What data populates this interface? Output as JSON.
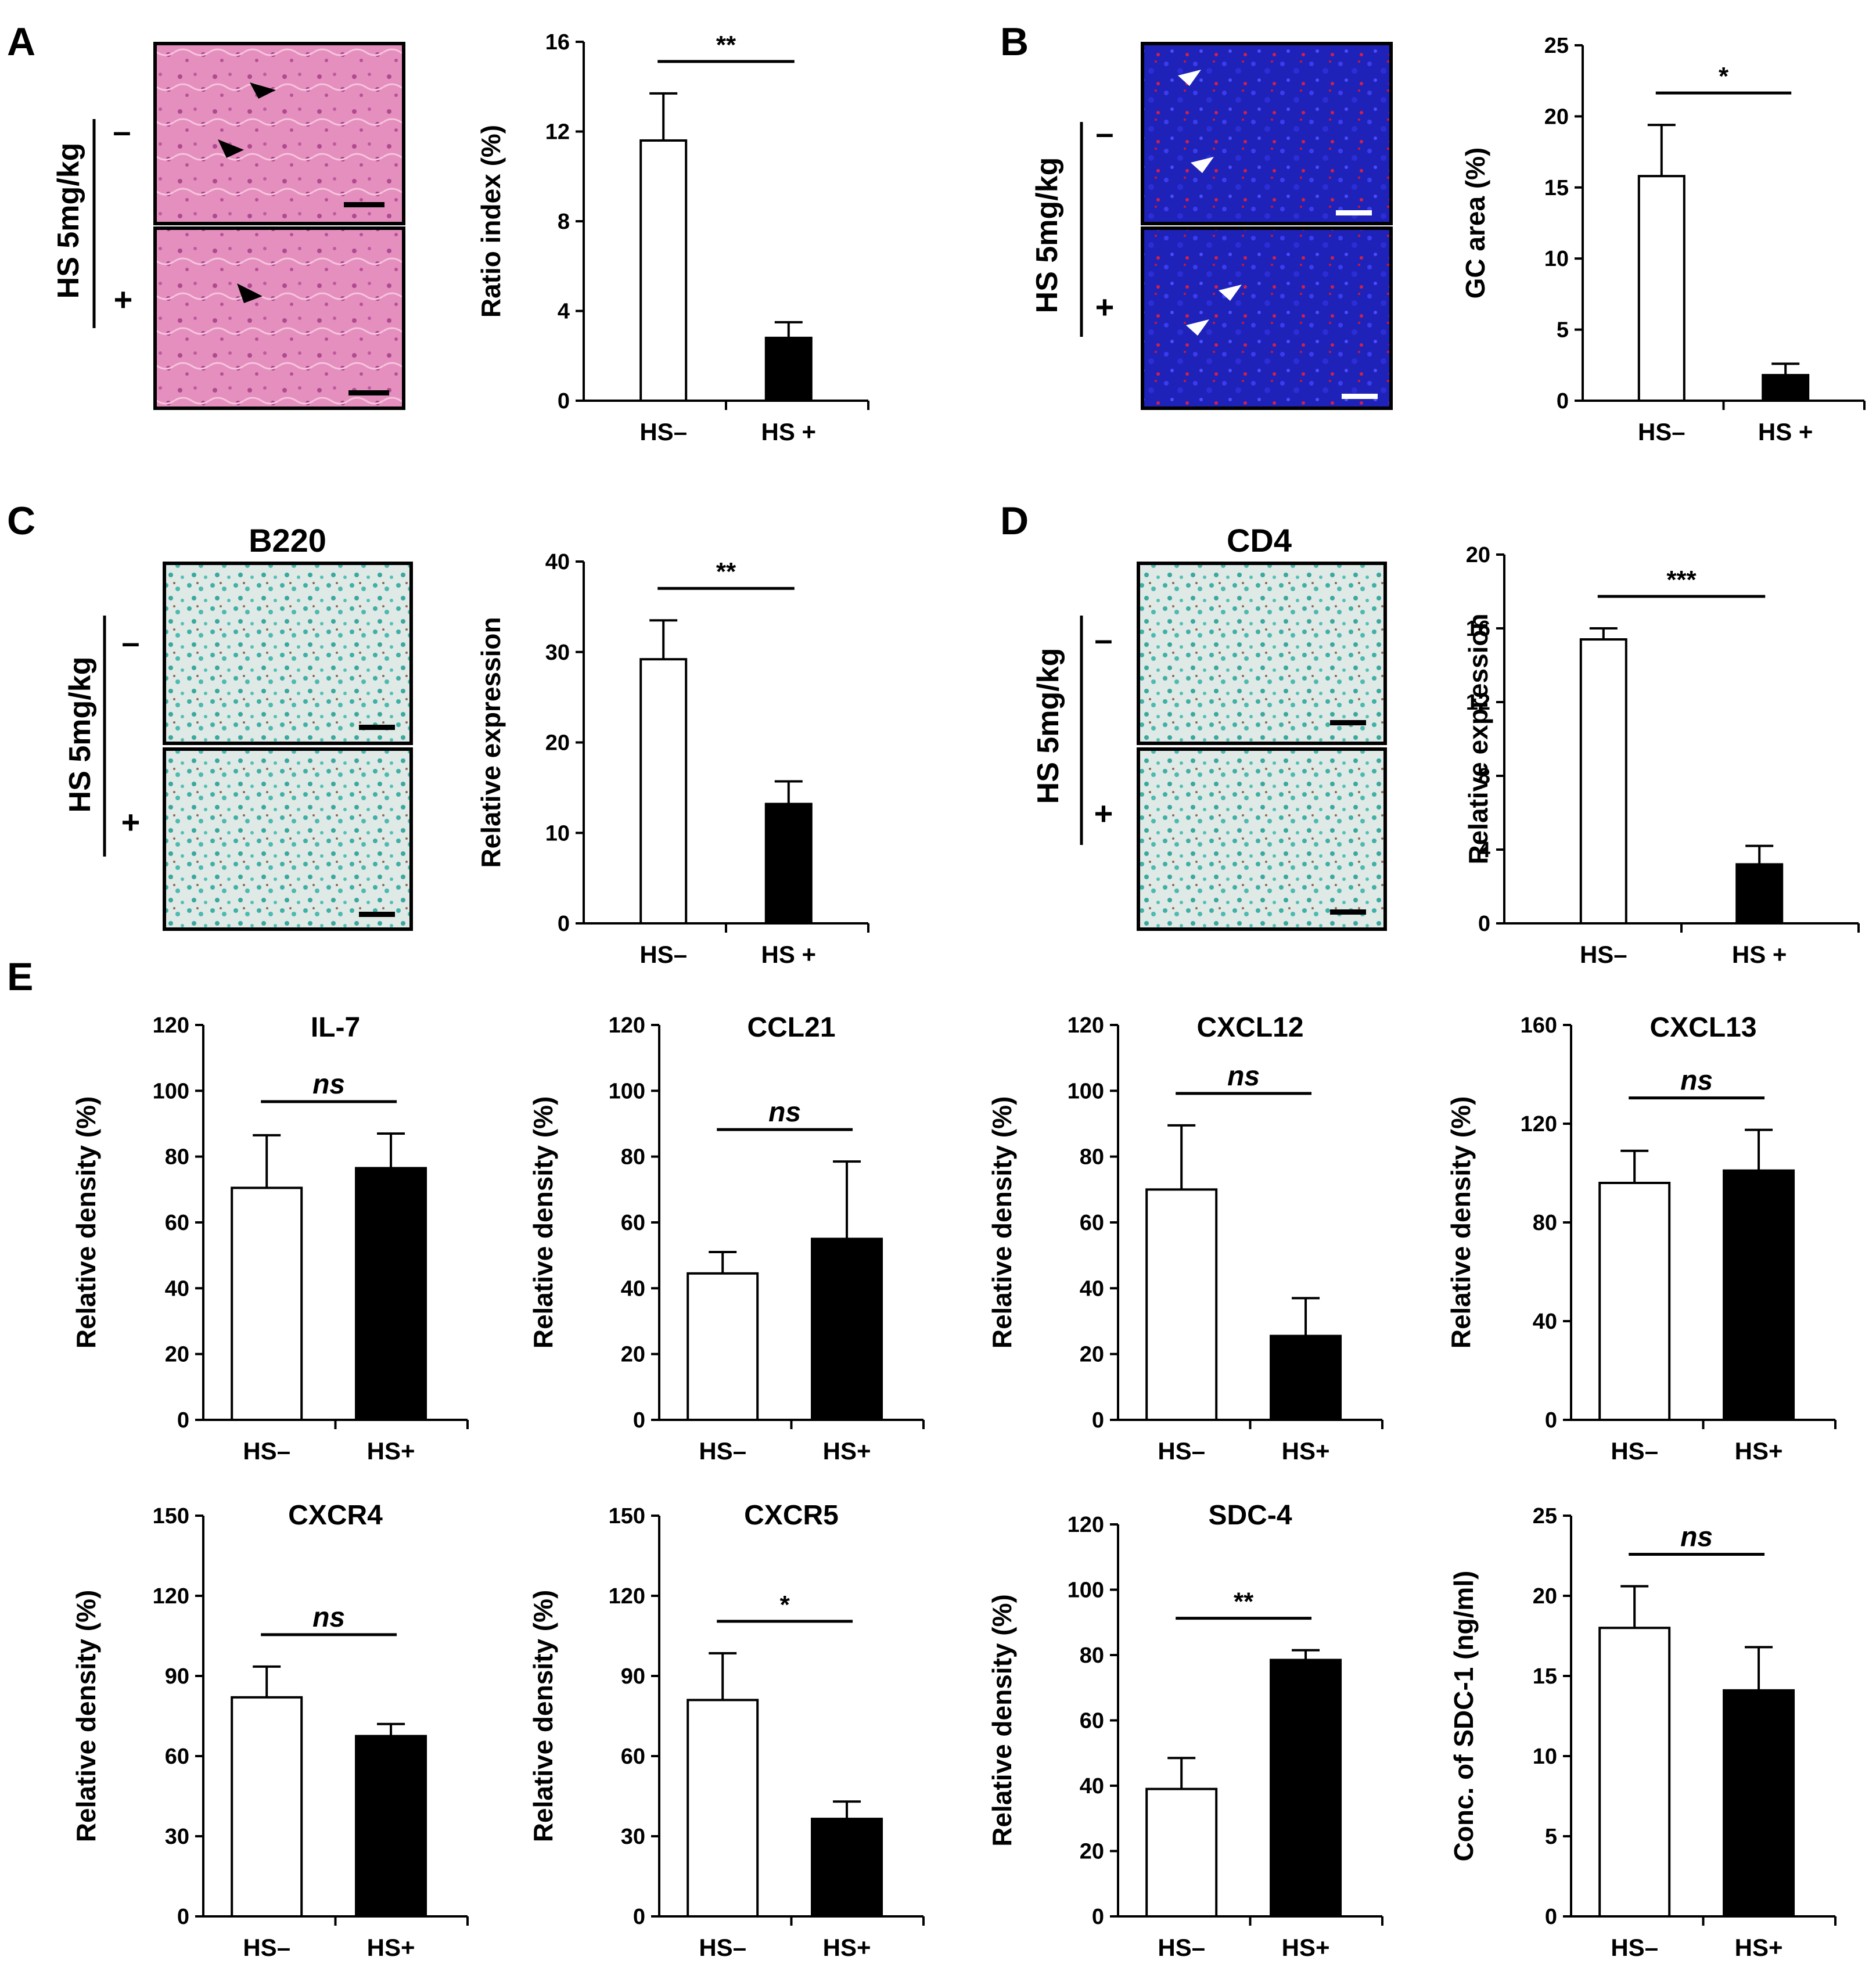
{
  "panels": [
    "A",
    "B",
    "C",
    "D",
    "E"
  ],
  "treatment_label": "HS 5mg/kg",
  "minus_label": "–",
  "plus_label": "+",
  "micro_labels": {
    "C": "B220",
    "D": "CD4"
  },
  "colors": {
    "bar_minus": "#ffffff",
    "bar_plus": "#000000",
    "he_stain": "#e8a0c8",
    "if_stain": "#2a2ad8",
    "ihc_stain": "#c8e4e0"
  },
  "chart_data": [
    {
      "id": "A",
      "type": "bar",
      "title": "",
      "ylabel": "Ratio index (%)",
      "categories": [
        "HS–",
        "HS +"
      ],
      "values": [
        11.6,
        2.8
      ],
      "errors": [
        2.1,
        0.7
      ],
      "ylim": [
        0,
        16
      ],
      "yticks": [
        0,
        4,
        8,
        12,
        16
      ],
      "sig": "**",
      "sig_italic": false
    },
    {
      "id": "B",
      "type": "bar",
      "title": "",
      "ylabel": "GC area (%)",
      "categories": [
        "HS–",
        "HS +"
      ],
      "values": [
        15.8,
        1.8
      ],
      "errors": [
        3.6,
        0.8
      ],
      "ylim": [
        0,
        25
      ],
      "yticks": [
        0,
        5,
        10,
        15,
        20,
        25
      ],
      "sig": "*",
      "sig_italic": false
    },
    {
      "id": "C",
      "type": "bar",
      "title": "",
      "ylabel": "Relative expression",
      "categories": [
        "HS–",
        "HS +"
      ],
      "values": [
        29.2,
        13.2
      ],
      "errors": [
        4.3,
        2.5
      ],
      "ylim": [
        0,
        40
      ],
      "yticks": [
        0,
        10,
        20,
        30,
        40
      ],
      "sig": "**",
      "sig_italic": false
    },
    {
      "id": "D",
      "type": "bar",
      "title": "",
      "ylabel": "Relative expression",
      "categories": [
        "HS–",
        "HS +"
      ],
      "values": [
        15.4,
        3.2
      ],
      "errors": [
        0.6,
        1.0
      ],
      "ylim": [
        0,
        20
      ],
      "yticks": [
        0,
        4,
        8,
        12,
        16,
        20
      ],
      "sig": "***",
      "sig_italic": false
    },
    {
      "id": "E1",
      "type": "bar",
      "title": "IL-7",
      "ylabel": "Relative density (%)",
      "categories": [
        "HS–",
        "HS+"
      ],
      "values": [
        70.5,
        76.5
      ],
      "errors": [
        16,
        10.5
      ],
      "ylim": [
        0,
        120
      ],
      "yticks": [
        0,
        20,
        40,
        60,
        80,
        100,
        120
      ],
      "sig": "ns",
      "sig_italic": true
    },
    {
      "id": "E2",
      "type": "bar",
      "title": "CCL21",
      "ylabel": "Relative density (%)",
      "categories": [
        "HS–",
        "HS+"
      ],
      "values": [
        44.5,
        55
      ],
      "errors": [
        6.5,
        23.5
      ],
      "ylim": [
        0,
        120
      ],
      "yticks": [
        0,
        20,
        40,
        60,
        80,
        100,
        120
      ],
      "sig": "ns",
      "sig_italic": true
    },
    {
      "id": "E3",
      "type": "bar",
      "title": "CXCL12",
      "ylabel": "Relative density (%)",
      "categories": [
        "HS–",
        "HS+"
      ],
      "values": [
        70,
        25.5
      ],
      "errors": [
        19.5,
        11.5
      ],
      "ylim": [
        0,
        120
      ],
      "yticks": [
        0,
        20,
        40,
        60,
        80,
        100,
        120
      ],
      "sig": "ns",
      "sig_italic": true
    },
    {
      "id": "E4",
      "type": "bar",
      "title": "CXCL13",
      "ylabel": "Relative density (%)",
      "categories": [
        "HS–",
        "HS+"
      ],
      "values": [
        96,
        101
      ],
      "errors": [
        13,
        16.5
      ],
      "ylim": [
        0,
        160
      ],
      "yticks": [
        0,
        40,
        80,
        120,
        160
      ],
      "sig": "ns",
      "sig_italic": true
    },
    {
      "id": "E5",
      "type": "bar",
      "title": "CXCR4",
      "ylabel": "Relative density (%)",
      "categories": [
        "HS–",
        "HS+"
      ],
      "values": [
        82,
        67.5
      ],
      "errors": [
        11.5,
        4.5
      ],
      "ylim": [
        0,
        150
      ],
      "yticks": [
        0,
        30,
        60,
        90,
        120,
        150
      ],
      "sig": "ns",
      "sig_italic": true
    },
    {
      "id": "E6",
      "type": "bar",
      "title": "CXCR5",
      "ylabel": "Relative density (%)",
      "categories": [
        "HS–",
        "HS+"
      ],
      "values": [
        81,
        36.5
      ],
      "errors": [
        17.5,
        6.5
      ],
      "ylim": [
        0,
        150
      ],
      "yticks": [
        0,
        30,
        60,
        90,
        120,
        150
      ],
      "sig": "*",
      "sig_italic": false
    },
    {
      "id": "E7",
      "type": "bar",
      "title": "SDC-4",
      "ylabel": "Relative density (%)",
      "categories": [
        "HS–",
        "HS+"
      ],
      "values": [
        39,
        78.5
      ],
      "errors": [
        9.5,
        3
      ],
      "ylim": [
        0,
        120
      ],
      "yticks": [
        0,
        20,
        40,
        60,
        80,
        100,
        120
      ],
      "sig": "**",
      "sig_italic": false
    },
    {
      "id": "E8",
      "type": "bar",
      "title": "",
      "ylabel": "Conc. of SDC-1 (ng/ml)",
      "categories": [
        "HS–",
        "HS+"
      ],
      "values": [
        18,
        14.1
      ],
      "errors": [
        2.6,
        2.7
      ],
      "ylim": [
        0,
        25
      ],
      "yticks": [
        0,
        5,
        10,
        15,
        20,
        25
      ],
      "sig": "ns",
      "sig_italic": true
    }
  ]
}
